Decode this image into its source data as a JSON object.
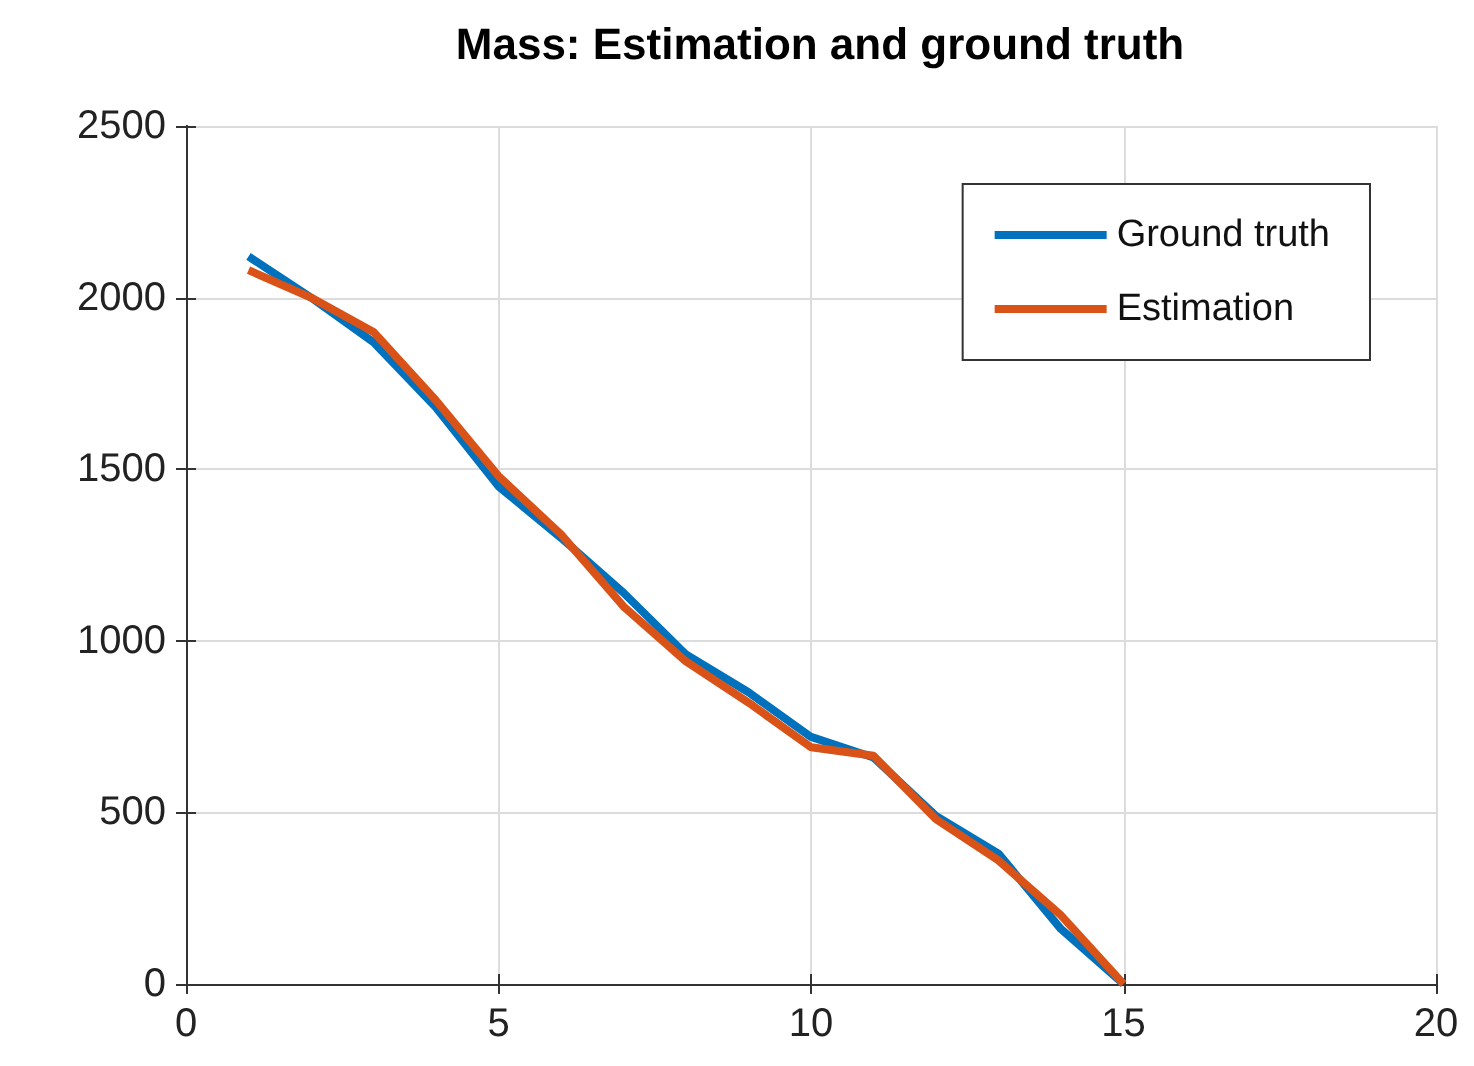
{
  "chart_data": {
    "type": "line",
    "title": "Mass: Estimation and ground truth",
    "x": [
      1,
      2,
      3,
      4,
      5,
      6,
      7,
      8,
      9,
      10,
      11,
      12,
      13,
      14,
      15
    ],
    "series": [
      {
        "name": "Ground truth",
        "color": "#0072bd",
        "values": [
          2120,
          2000,
          1870,
          1680,
          1450,
          1300,
          1140,
          960,
          850,
          720,
          660,
          490,
          380,
          160,
          0
        ]
      },
      {
        "name": "Estimation",
        "color": "#d95319",
        "values": [
          2080,
          2000,
          1900,
          1700,
          1480,
          1310,
          1100,
          940,
          820,
          690,
          665,
          480,
          360,
          200,
          0
        ]
      }
    ],
    "xlim": [
      0,
      20
    ],
    "xticks": [
      0,
      5,
      10,
      15,
      20
    ],
    "ylim": [
      0,
      2500
    ],
    "yticks": [
      0,
      500,
      1000,
      1500,
      2000,
      2500
    ],
    "grid": true,
    "legend": "top right",
    "marker": "none",
    "line_style": "solid"
  }
}
